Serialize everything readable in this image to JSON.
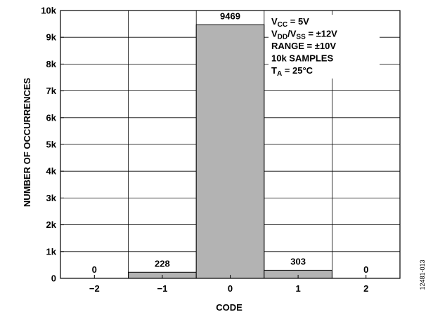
{
  "chart_data": {
    "type": "bar",
    "categories": [
      "−2",
      "−1",
      "0",
      "1",
      "2"
    ],
    "values": [
      0,
      228,
      9469,
      303,
      0
    ],
    "data_labels": [
      "0",
      "228",
      "9469",
      "303",
      "0"
    ],
    "xlabel": "CODE",
    "ylabel": "NUMBER OF OCCURRENCES",
    "ylim": [
      0,
      10000
    ],
    "yticks": [
      0,
      1000,
      2000,
      3000,
      4000,
      5000,
      6000,
      7000,
      8000,
      9000,
      10000
    ],
    "ytick_labels": [
      "0",
      "1k",
      "2k",
      "3k",
      "4k",
      "5k",
      "6k",
      "7k",
      "8k",
      "9k",
      "10k"
    ],
    "grid": true,
    "bar_color": "#b3b3b3",
    "annotation": [
      {
        "main": "V",
        "sub": "CC",
        "rest": " = 5V"
      },
      {
        "main": "V",
        "sub": "DD",
        "mid": "/V",
        "sub2": "SS",
        "rest": " = ±12V"
      },
      {
        "main": "RANGE = ±10V"
      },
      {
        "main": "10k SAMPLES"
      },
      {
        "main": "T",
        "sub": "A",
        "rest": " = 25°C"
      }
    ]
  },
  "figure_id": "12481-013"
}
